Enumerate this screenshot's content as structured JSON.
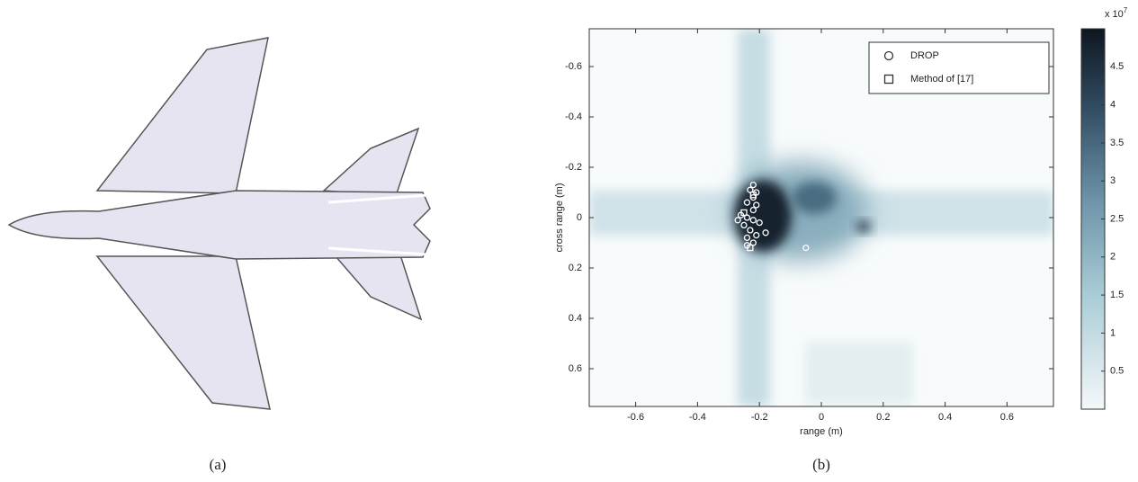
{
  "captions": [
    "(a)",
    "(b)"
  ],
  "chart_data": {
    "type": "scatter",
    "xlabel": "range (m)",
    "ylabel": "cross range (m)",
    "xlim": [
      -0.75,
      0.75
    ],
    "ylim": [
      -0.75,
      0.75
    ],
    "y_inverted": true,
    "xticks": [
      -0.6,
      -0.4,
      -0.2,
      0,
      0.2,
      0.4,
      0.6
    ],
    "yticks": [
      -0.6,
      -0.4,
      -0.2,
      0,
      0.2,
      0.4,
      0.6
    ],
    "legend": "upper right",
    "series": [
      {
        "name": "DROP",
        "marker": "circle",
        "color": "#ffffff",
        "x": [
          -0.22,
          -0.23,
          -0.21,
          -0.22,
          -0.24,
          -0.21,
          -0.22,
          -0.26,
          -0.24,
          -0.27,
          -0.22,
          -0.2,
          -0.25,
          -0.23,
          -0.18,
          -0.21,
          -0.24,
          -0.22,
          -0.24,
          -0.05
        ],
        "values": [
          -0.13,
          -0.11,
          -0.1,
          -0.08,
          -0.06,
          -0.05,
          -0.03,
          -0.01,
          0,
          0.01,
          0.01,
          0.02,
          0.03,
          0.05,
          0.06,
          0.07,
          0.08,
          0.1,
          0.11,
          0.12
        ]
      },
      {
        "name": "Method of [17]",
        "marker": "square",
        "color": "#ffffff",
        "x": [
          -0.23,
          -0.25,
          -0.22
        ],
        "values": [
          0.12,
          -0.02,
          -0.09
        ]
      }
    ],
    "colorbar": {
      "label": "x 10",
      "exponent": "7",
      "lim": [
        0,
        5
      ],
      "ticks": [
        0.5,
        1,
        1.5,
        2,
        2.5,
        3,
        3.5,
        4,
        4.5
      ]
    }
  }
}
